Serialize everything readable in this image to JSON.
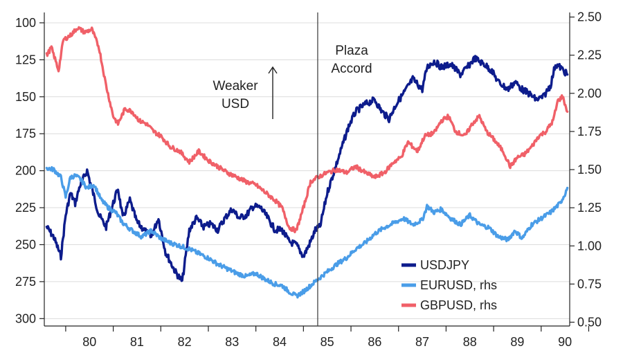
{
  "chart_data": {
    "type": "line",
    "title": "",
    "xlabel": "",
    "ylabel_left": "",
    "ylabel_right": "",
    "x_ticks": [
      "80",
      "81",
      "82",
      "83",
      "84",
      "85",
      "86",
      "87",
      "88",
      "89",
      "90"
    ],
    "x_range": [
      1979.55,
      1990.6
    ],
    "y_left": {
      "range": [
        305,
        93
      ],
      "inverted": true,
      "ticks": [
        "100",
        "125",
        "150",
        "175",
        "200",
        "225",
        "250",
        "275",
        "300"
      ]
    },
    "y_right": {
      "range": [
        0.475,
        2.53
      ],
      "ticks": [
        "2.50",
        "2.25",
        "2.00",
        "1.75",
        "1.50",
        "1.25",
        "1.00",
        "0.75",
        "0.50"
      ]
    },
    "grid": true,
    "legend_position": "bottom-right",
    "series": [
      {
        "name": "USDJPY",
        "axis": "left",
        "color": "#0d1c8c",
        "x": [
          1979.6,
          1979.75,
          1979.9,
          1980.0,
          1980.1,
          1980.2,
          1980.3,
          1980.45,
          1980.55,
          1980.7,
          1980.85,
          1981.0,
          1981.1,
          1981.2,
          1981.35,
          1981.5,
          1981.65,
          1981.8,
          1981.95,
          1982.1,
          1982.3,
          1982.45,
          1982.6,
          1982.75,
          1982.9,
          1983.05,
          1983.2,
          1983.35,
          1983.5,
          1983.65,
          1983.8,
          1983.95,
          1984.1,
          1984.25,
          1984.4,
          1984.55,
          1984.7,
          1984.85,
          1985.0,
          1985.15,
          1985.25,
          1985.35,
          1985.5,
          1985.65,
          1985.8,
          1985.95,
          1986.1,
          1986.3,
          1986.5,
          1986.65,
          1986.8,
          1986.95,
          1987.1,
          1987.3,
          1987.5,
          1987.6,
          1987.75,
          1987.9,
          1988.1,
          1988.3,
          1988.45,
          1988.6,
          1988.8,
          1988.95,
          1989.1,
          1989.3,
          1989.45,
          1989.6,
          1989.75,
          1989.9,
          1990.05,
          1990.2,
          1990.3,
          1990.4,
          1990.55
        ],
        "y": [
          238,
          245,
          258,
          230,
          215,
          222,
          210,
          200,
          212,
          230,
          238,
          222,
          212,
          232,
          220,
          235,
          240,
          245,
          232,
          255,
          268,
          275,
          240,
          232,
          238,
          236,
          240,
          232,
          226,
          232,
          230,
          224,
          225,
          232,
          240,
          240,
          248,
          250,
          258,
          248,
          240,
          238,
          215,
          200,
          185,
          170,
          160,
          155,
          152,
          160,
          165,
          155,
          148,
          138,
          145,
          130,
          126,
          130,
          128,
          135,
          130,
          124,
          128,
          132,
          140,
          145,
          140,
          145,
          148,
          152,
          150,
          142,
          128,
          130,
          135
        ]
      },
      {
        "name": "EURUSD, rhs",
        "axis": "right",
        "color": "#4a9de8",
        "x": [
          1979.6,
          1979.75,
          1979.9,
          1980.0,
          1980.1,
          1980.2,
          1980.3,
          1980.45,
          1980.6,
          1980.75,
          1980.9,
          1981.05,
          1981.2,
          1981.4,
          1981.6,
          1981.8,
          1982.0,
          1982.2,
          1982.4,
          1982.6,
          1982.8,
          1983.0,
          1983.2,
          1983.4,
          1983.6,
          1983.8,
          1984.0,
          1984.2,
          1984.4,
          1984.55,
          1984.7,
          1984.85,
          1985.0,
          1985.15,
          1985.3,
          1985.5,
          1985.7,
          1985.9,
          1986.1,
          1986.3,
          1986.5,
          1986.7,
          1986.9,
          1987.1,
          1987.3,
          1987.5,
          1987.6,
          1987.75,
          1987.9,
          1988.1,
          1988.3,
          1988.5,
          1988.7,
          1988.9,
          1989.1,
          1989.3,
          1989.45,
          1989.6,
          1989.8,
          1990.0,
          1990.2,
          1990.4,
          1990.5,
          1990.55
        ],
        "y": [
          1.51,
          1.5,
          1.45,
          1.32,
          1.45,
          1.46,
          1.44,
          1.38,
          1.4,
          1.3,
          1.25,
          1.22,
          1.15,
          1.1,
          1.06,
          1.1,
          1.05,
          1.02,
          1.0,
          0.98,
          0.95,
          0.92,
          0.88,
          0.85,
          0.82,
          0.8,
          0.82,
          0.78,
          0.75,
          0.74,
          0.7,
          0.67,
          0.7,
          0.74,
          0.78,
          0.83,
          0.88,
          0.92,
          0.98,
          1.02,
          1.08,
          1.12,
          1.15,
          1.18,
          1.14,
          1.17,
          1.26,
          1.22,
          1.24,
          1.18,
          1.14,
          1.2,
          1.14,
          1.12,
          1.06,
          1.04,
          1.1,
          1.05,
          1.14,
          1.18,
          1.22,
          1.28,
          1.34,
          1.38
        ]
      },
      {
        "name": "GBPUSD, rhs",
        "axis": "right",
        "color": "#f06068",
        "x": [
          1979.6,
          1979.7,
          1979.85,
          1979.95,
          1980.1,
          1980.25,
          1980.4,
          1980.55,
          1980.7,
          1980.85,
          1981.0,
          1981.1,
          1981.25,
          1981.4,
          1981.55,
          1981.7,
          1981.85,
          1982.0,
          1982.2,
          1982.4,
          1982.6,
          1982.8,
          1983.0,
          1983.2,
          1983.4,
          1983.6,
          1983.8,
          1984.0,
          1984.2,
          1984.4,
          1984.55,
          1984.7,
          1984.85,
          1985.0,
          1985.15,
          1985.3,
          1985.5,
          1985.7,
          1985.9,
          1986.1,
          1986.3,
          1986.5,
          1986.7,
          1986.9,
          1987.05,
          1987.2,
          1987.4,
          1987.55,
          1987.75,
          1987.9,
          1988.05,
          1988.2,
          1988.4,
          1988.55,
          1988.7,
          1988.85,
          1989.0,
          1989.2,
          1989.35,
          1989.5,
          1989.65,
          1989.8,
          1989.95,
          1990.1,
          1990.25,
          1990.35,
          1990.45,
          1990.55
        ],
        "y": [
          2.25,
          2.3,
          2.15,
          2.35,
          2.38,
          2.43,
          2.4,
          2.42,
          2.3,
          2.05,
          1.85,
          1.8,
          1.9,
          1.88,
          1.82,
          1.8,
          1.75,
          1.72,
          1.65,
          1.62,
          1.55,
          1.62,
          1.56,
          1.52,
          1.48,
          1.45,
          1.42,
          1.4,
          1.35,
          1.3,
          1.25,
          1.12,
          1.1,
          1.25,
          1.42,
          1.45,
          1.48,
          1.5,
          1.48,
          1.52,
          1.48,
          1.45,
          1.48,
          1.55,
          1.58,
          1.68,
          1.62,
          1.72,
          1.74,
          1.82,
          1.85,
          1.75,
          1.72,
          1.8,
          1.85,
          1.75,
          1.7,
          1.62,
          1.52,
          1.58,
          1.6,
          1.65,
          1.72,
          1.75,
          1.82,
          1.95,
          1.98,
          1.88
        ]
      }
    ],
    "annotations": [
      {
        "lines": [
          "Weaker",
          "USD"
        ],
        "arrow": "up"
      },
      {
        "lines": [
          "Plaza",
          "Accord"
        ],
        "vertical_line_at_x": 1985.3
      }
    ]
  }
}
